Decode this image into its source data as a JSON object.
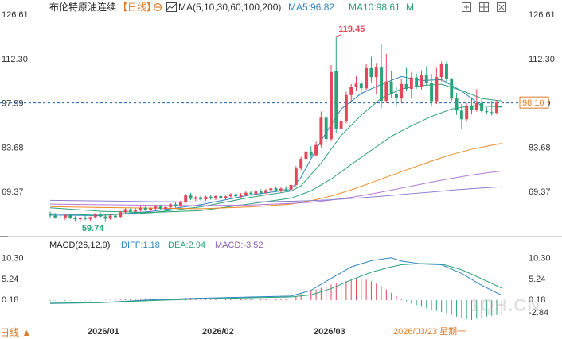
{
  "header": {
    "title": "布伦特原油连续",
    "period_tag": "【日线】",
    "period_icon": "target-icon",
    "ma_icon": "ma-toggle-icon",
    "ma_label": "MA(5,10,30,60,100,200)",
    "ma5_label": "MA5:96.82",
    "ma10_label": "MA10:98.61",
    "more_label": "M",
    "window_controls": [
      "expand-icon",
      "grid-icon",
      "close-icon"
    ]
  },
  "macd_header": {
    "title": "MACD(26,12,9)",
    "diff_label": "DIFF:1.18",
    "dea_label": "DEA:2.94",
    "macd_label": "MACD:-3.52"
  },
  "footer": {
    "period_switch": "日线 ▲",
    "date_hint": "2026/03/23 星期一",
    "watermark": "1QH.CN"
  },
  "colors": {
    "up": "#e5465a",
    "down": "#2aa37a",
    "ma5": "#2e86c1",
    "ma10": "#2aa37a",
    "ma30": "#2aa37a",
    "ma60": "#f08a24",
    "ma100": "#b678d6",
    "ma200": "#8a7fd0",
    "dash": "#1d5fa8",
    "price_box": "#e07b2a",
    "axis_text": "#333333"
  },
  "chart_data": [
    {
      "type": "candlestick",
      "title": "布伦特原油连续 日线",
      "y_ticks": [
        "126.61",
        "112.30",
        "97.99",
        "83.68",
        "69.37"
      ],
      "ylim": [
        55.06,
        126.61
      ],
      "x_ticks": [
        "2026/01",
        "2026/02",
        "2026/03"
      ],
      "last_price": "98.10",
      "max_annotation": "119.45",
      "min_annotation": "59.74",
      "reference_level": 97.99,
      "candles": [
        {
          "o": 62.0,
          "h": 62.9,
          "l": 61.0,
          "c": 61.6
        },
        {
          "o": 61.6,
          "h": 62.4,
          "l": 60.6,
          "c": 61.0
        },
        {
          "o": 61.0,
          "h": 61.8,
          "l": 60.2,
          "c": 60.8
        },
        {
          "o": 60.9,
          "h": 62.2,
          "l": 60.2,
          "c": 61.7
        },
        {
          "o": 61.6,
          "h": 62.0,
          "l": 60.4,
          "c": 60.7
        },
        {
          "o": 60.7,
          "h": 61.4,
          "l": 59.9,
          "c": 60.4
        },
        {
          "o": 60.4,
          "h": 61.2,
          "l": 59.7,
          "c": 60.9
        },
        {
          "o": 60.9,
          "h": 61.6,
          "l": 60.1,
          "c": 60.5
        },
        {
          "o": 60.5,
          "h": 61.3,
          "l": 59.9,
          "c": 61.1
        },
        {
          "o": 61.1,
          "h": 62.4,
          "l": 60.6,
          "c": 62.0
        },
        {
          "o": 62.0,
          "h": 62.8,
          "l": 60.9,
          "c": 61.3
        },
        {
          "o": 61.3,
          "h": 62.0,
          "l": 59.74,
          "c": 60.6
        },
        {
          "o": 60.6,
          "h": 61.9,
          "l": 60.2,
          "c": 61.6
        },
        {
          "o": 61.6,
          "h": 62.3,
          "l": 60.8,
          "c": 61.1
        },
        {
          "o": 61.2,
          "h": 63.1,
          "l": 60.9,
          "c": 62.7
        },
        {
          "o": 62.7,
          "h": 64.0,
          "l": 62.1,
          "c": 63.6
        },
        {
          "o": 63.6,
          "h": 64.2,
          "l": 62.6,
          "c": 62.9
        },
        {
          "o": 62.9,
          "h": 64.0,
          "l": 62.2,
          "c": 63.4
        },
        {
          "o": 63.4,
          "h": 64.8,
          "l": 62.9,
          "c": 64.1
        },
        {
          "o": 64.1,
          "h": 64.6,
          "l": 63.0,
          "c": 63.3
        },
        {
          "o": 63.3,
          "h": 64.4,
          "l": 62.7,
          "c": 63.9
        },
        {
          "o": 63.9,
          "h": 65.0,
          "l": 63.4,
          "c": 64.5
        },
        {
          "o": 64.5,
          "h": 65.1,
          "l": 63.5,
          "c": 63.8
        },
        {
          "o": 63.8,
          "h": 64.9,
          "l": 63.1,
          "c": 64.3
        },
        {
          "o": 64.3,
          "h": 65.6,
          "l": 63.8,
          "c": 65.2
        },
        {
          "o": 65.2,
          "h": 66.1,
          "l": 64.2,
          "c": 64.6
        },
        {
          "o": 64.6,
          "h": 66.4,
          "l": 64.3,
          "c": 66.0
        },
        {
          "o": 66.0,
          "h": 68.6,
          "l": 65.6,
          "c": 68.1
        },
        {
          "o": 68.1,
          "h": 68.9,
          "l": 66.6,
          "c": 67.0
        },
        {
          "o": 67.0,
          "h": 67.9,
          "l": 66.3,
          "c": 67.5
        },
        {
          "o": 67.5,
          "h": 68.1,
          "l": 66.4,
          "c": 66.8
        },
        {
          "o": 66.8,
          "h": 68.0,
          "l": 66.3,
          "c": 67.7
        },
        {
          "o": 67.7,
          "h": 68.4,
          "l": 66.7,
          "c": 67.1
        },
        {
          "o": 67.1,
          "h": 68.2,
          "l": 66.6,
          "c": 67.9
        },
        {
          "o": 67.9,
          "h": 68.5,
          "l": 66.8,
          "c": 67.2
        },
        {
          "o": 67.2,
          "h": 68.3,
          "l": 66.6,
          "c": 67.8
        },
        {
          "o": 67.8,
          "h": 68.9,
          "l": 67.3,
          "c": 68.5
        },
        {
          "o": 68.5,
          "h": 69.0,
          "l": 67.4,
          "c": 67.8
        },
        {
          "o": 67.8,
          "h": 68.9,
          "l": 67.2,
          "c": 68.4
        },
        {
          "o": 68.4,
          "h": 69.4,
          "l": 67.9,
          "c": 69.0
        },
        {
          "o": 69.0,
          "h": 69.5,
          "l": 68.0,
          "c": 68.6
        },
        {
          "o": 68.6,
          "h": 69.8,
          "l": 68.1,
          "c": 69.4
        },
        {
          "o": 69.4,
          "h": 70.1,
          "l": 68.5,
          "c": 68.9
        },
        {
          "o": 68.9,
          "h": 70.2,
          "l": 68.5,
          "c": 69.8
        },
        {
          "o": 69.8,
          "h": 70.9,
          "l": 69.2,
          "c": 70.4
        },
        {
          "o": 70.4,
          "h": 71.0,
          "l": 69.3,
          "c": 69.7
        },
        {
          "o": 69.7,
          "h": 70.8,
          "l": 69.0,
          "c": 70.3
        },
        {
          "o": 70.3,
          "h": 71.1,
          "l": 69.6,
          "c": 70.0
        },
        {
          "o": 70.0,
          "h": 72.0,
          "l": 69.6,
          "c": 71.5
        },
        {
          "o": 71.5,
          "h": 77.6,
          "l": 71.0,
          "c": 76.8
        },
        {
          "o": 76.8,
          "h": 80.6,
          "l": 76.2,
          "c": 79.9
        },
        {
          "o": 79.9,
          "h": 83.4,
          "l": 78.8,
          "c": 82.3
        },
        {
          "o": 82.3,
          "h": 84.0,
          "l": 80.2,
          "c": 81.1
        },
        {
          "o": 81.1,
          "h": 85.5,
          "l": 80.6,
          "c": 84.4
        },
        {
          "o": 84.4,
          "h": 95.2,
          "l": 83.6,
          "c": 93.2
        },
        {
          "o": 93.2,
          "h": 94.1,
          "l": 85.1,
          "c": 86.3
        },
        {
          "o": 86.3,
          "h": 110.2,
          "l": 85.6,
          "c": 107.9
        },
        {
          "o": 108.4,
          "h": 119.45,
          "l": 88.2,
          "c": 89.7
        },
        {
          "o": 89.7,
          "h": 93.1,
          "l": 88.6,
          "c": 92.2
        },
        {
          "o": 92.2,
          "h": 101.6,
          "l": 91.4,
          "c": 100.5
        },
        {
          "o": 100.5,
          "h": 104.1,
          "l": 98.3,
          "c": 103.1
        },
        {
          "o": 103.1,
          "h": 106.6,
          "l": 102.0,
          "c": 104.2
        },
        {
          "o": 104.2,
          "h": 105.1,
          "l": 100.8,
          "c": 102.7
        },
        {
          "o": 102.7,
          "h": 110.6,
          "l": 102.1,
          "c": 109.2
        },
        {
          "o": 109.2,
          "h": 112.9,
          "l": 104.6,
          "c": 106.3
        },
        {
          "o": 106.3,
          "h": 110.9,
          "l": 100.7,
          "c": 109.4
        },
        {
          "o": 109.4,
          "h": 116.9,
          "l": 96.3,
          "c": 98.6
        },
        {
          "o": 98.6,
          "h": 113.8,
          "l": 97.9,
          "c": 104.9
        },
        {
          "o": 104.9,
          "h": 108.2,
          "l": 99.4,
          "c": 100.9
        },
        {
          "o": 100.9,
          "h": 103.1,
          "l": 96.9,
          "c": 99.4
        },
        {
          "o": 99.4,
          "h": 105.6,
          "l": 98.3,
          "c": 104.1
        },
        {
          "o": 104.1,
          "h": 109.3,
          "l": 101.7,
          "c": 102.5
        },
        {
          "o": 102.5,
          "h": 108.0,
          "l": 99.4,
          "c": 106.2
        },
        {
          "o": 106.2,
          "h": 107.5,
          "l": 102.5,
          "c": 103.3
        },
        {
          "o": 103.3,
          "h": 108.5,
          "l": 102.3,
          "c": 107.1
        },
        {
          "o": 107.1,
          "h": 109.8,
          "l": 103.7,
          "c": 104.5
        },
        {
          "o": 104.5,
          "h": 107.4,
          "l": 97.0,
          "c": 98.5
        },
        {
          "o": 98.5,
          "h": 109.3,
          "l": 97.6,
          "c": 106.3
        },
        {
          "o": 106.3,
          "h": 111.3,
          "l": 104.9,
          "c": 110.7
        },
        {
          "o": 110.7,
          "h": 111.4,
          "l": 104.4,
          "c": 105.7
        },
        {
          "o": 105.7,
          "h": 106.1,
          "l": 98.5,
          "c": 99.4
        },
        {
          "o": 99.4,
          "h": 101.2,
          "l": 94.1,
          "c": 95.5
        },
        {
          "o": 95.5,
          "h": 97.7,
          "l": 89.6,
          "c": 92.7
        },
        {
          "o": 92.7,
          "h": 97.9,
          "l": 92.1,
          "c": 97.1
        },
        {
          "o": 97.1,
          "h": 99.8,
          "l": 94.5,
          "c": 95.7
        },
        {
          "o": 95.7,
          "h": 102.4,
          "l": 95.2,
          "c": 97.9
        },
        {
          "o": 97.9,
          "h": 99.1,
          "l": 94.9,
          "c": 95.3
        },
        {
          "o": 95.3,
          "h": 96.6,
          "l": 94.2,
          "c": 95.0
        },
        {
          "o": 95.0,
          "h": 98.6,
          "l": 93.9,
          "c": 94.8
        },
        {
          "o": 94.8,
          "h": 98.9,
          "l": 94.2,
          "c": 98.1
        }
      ],
      "ma_series": [
        {
          "name": "MA5",
          "x": [
            0,
            10,
            20,
            30,
            40,
            48,
            50,
            54,
            58,
            62,
            66,
            70,
            74,
            78,
            82,
            86,
            90
          ],
          "values": [
            61.8,
            61.6,
            62.9,
            65.1,
            68.3,
            70.0,
            74.0,
            85.8,
            96.0,
            101.0,
            104.0,
            106.5,
            105.2,
            105.5,
            101.8,
            97.0,
            96.8
          ]
        },
        {
          "name": "MA10",
          "x": [
            0,
            10,
            20,
            30,
            40,
            48,
            50,
            54,
            58,
            62,
            66,
            70,
            74,
            78,
            82,
            86,
            90
          ],
          "values": [
            62.2,
            61.7,
            62.5,
            64.4,
            67.5,
            69.5,
            71.2,
            78.5,
            87.5,
            94.0,
            99.5,
            102.5,
            103.6,
            104.0,
            102.0,
            99.4,
            98.6
          ]
        },
        {
          "name": "MA30",
          "x": [
            0,
            10,
            20,
            30,
            40,
            48,
            52,
            56,
            60,
            64,
            68,
            72,
            76,
            80,
            84,
            88,
            90
          ],
          "values": [
            64.1,
            63.0,
            62.6,
            63.2,
            65.4,
            67.2,
            69.6,
            73.4,
            78.1,
            82.7,
            87.2,
            90.6,
            93.6,
            96.0,
            97.1,
            96.9,
            96.6
          ]
        },
        {
          "name": "MA60",
          "x": [
            0,
            10,
            20,
            30,
            40,
            48,
            52,
            56,
            60,
            64,
            68,
            72,
            76,
            80,
            84,
            88,
            90
          ],
          "values": [
            64.5,
            64.2,
            64.0,
            63.8,
            64.4,
            65.3,
            66.4,
            67.9,
            69.9,
            72.2,
            74.6,
            76.9,
            79.2,
            81.3,
            83.0,
            84.3,
            84.9
          ]
        },
        {
          "name": "MA100",
          "x": [
            0,
            10,
            20,
            30,
            40,
            48,
            52,
            56,
            60,
            64,
            68,
            72,
            76,
            80,
            84,
            88,
            90
          ],
          "values": [
            65.3,
            65.1,
            64.9,
            64.8,
            65.0,
            65.5,
            65.9,
            66.6,
            67.5,
            68.6,
            69.8,
            71.1,
            72.4,
            73.6,
            74.7,
            75.6,
            76.0
          ]
        },
        {
          "name": "MA200",
          "x": [
            0,
            10,
            20,
            30,
            40,
            48,
            52,
            56,
            60,
            64,
            68,
            72,
            76,
            80,
            84,
            88,
            90
          ],
          "values": [
            66.5,
            66.3,
            66.1,
            66.0,
            66.0,
            66.2,
            66.4,
            66.7,
            67.1,
            67.6,
            68.1,
            68.7,
            69.2,
            69.8,
            70.3,
            70.7,
            70.9
          ]
        }
      ]
    },
    {
      "type": "macd",
      "title": "MACD(26,12,9)",
      "y_ticks": [
        "10.30",
        "5.24",
        "0.18",
        "-2.84"
      ],
      "ylim": [
        -5.0,
        11.6
      ],
      "diff": {
        "x": [
          0,
          10,
          20,
          30,
          40,
          48,
          52,
          56,
          60,
          64,
          68,
          70,
          74,
          78,
          82,
          86,
          90
        ],
        "values": [
          -0.8,
          -0.6,
          0.1,
          0.5,
          0.8,
          1.0,
          2.4,
          5.3,
          8.1,
          9.6,
          10.3,
          9.5,
          8.8,
          8.6,
          6.5,
          3.6,
          1.18
        ]
      },
      "dea": {
        "x": [
          0,
          10,
          20,
          30,
          40,
          48,
          52,
          56,
          60,
          64,
          68,
          70,
          74,
          78,
          82,
          86,
          90
        ],
        "values": [
          -0.7,
          -0.6,
          -0.1,
          0.3,
          0.6,
          0.8,
          1.3,
          2.8,
          4.9,
          6.8,
          8.1,
          8.6,
          8.9,
          8.8,
          7.4,
          5.2,
          2.94
        ]
      },
      "histogram": [
        -0.2,
        -0.1,
        -0.1,
        -0.2,
        -0.1,
        0.0,
        -0.1,
        -0.1,
        -0.1,
        0.0,
        0.0,
        0.1,
        0.1,
        0.2,
        0.2,
        0.3,
        0.3,
        0.4,
        0.4,
        0.5,
        0.5,
        0.4,
        0.4,
        0.3,
        0.3,
        0.4,
        0.5,
        0.6,
        0.6,
        0.5,
        0.4,
        0.3,
        0.3,
        0.3,
        0.2,
        0.2,
        0.3,
        0.3,
        0.4,
        0.4,
        0.3,
        0.3,
        0.4,
        0.4,
        0.3,
        0.3,
        0.3,
        0.3,
        0.4,
        1.0,
        1.5,
        2.0,
        2.3,
        2.6,
        3.0,
        3.4,
        3.8,
        4.2,
        4.6,
        4.6,
        4.9,
        5.2,
        5.3,
        5.0,
        4.6,
        4.0,
        3.4,
        2.6,
        1.8,
        1.0,
        0.3,
        -0.3,
        -0.8,
        -1.2,
        -1.6,
        -2.0,
        -2.3,
        -2.6,
        -2.9,
        -3.2,
        -3.6,
        -4.0,
        -4.3,
        -4.6,
        -4.8,
        -4.5,
        -4.2,
        -4.0,
        -3.8,
        -3.6,
        -3.52
      ]
    }
  ]
}
